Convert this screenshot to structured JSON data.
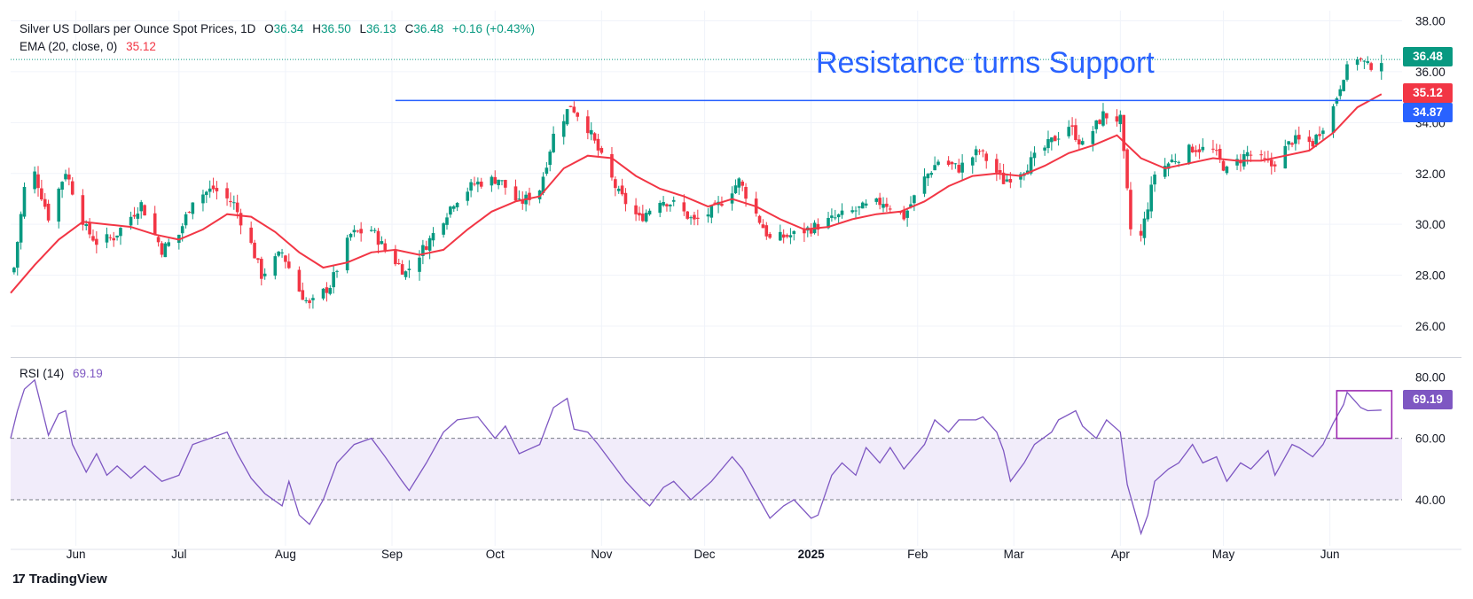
{
  "header": {
    "title": "Silver US Dollars per Ounce Spot Prices, 1D",
    "open_label": "O",
    "open": "36.34",
    "high_label": "H",
    "high": "36.50",
    "low_label": "L",
    "low": "36.13",
    "close_label": "C",
    "close": "36.48",
    "change": "+0.16 (+0.43%)"
  },
  "ema_legend": {
    "label": "EMA (20, close, 0)",
    "value": "35.12"
  },
  "rsi_legend": {
    "label": "RSI (14)",
    "value": "69.19"
  },
  "annotation": "Resistance turns Support",
  "badges": {
    "price": "36.48",
    "ema": "35.12",
    "resistance": "34.87",
    "rsi": "69.19"
  },
  "brand": "TradingView",
  "colors": {
    "up": "#089981",
    "down": "#f23645",
    "ema": "#f23645",
    "resistance": "#2962ff",
    "rsi": "#7e57c2",
    "rsi_band": "#f1ecfa",
    "grid": "#f0f3fa"
  },
  "icons": [
    "tradingview-logo-icon"
  ],
  "chart_data": [
    {
      "type": "candlestick",
      "title": "Silver US Dollars per Ounce Spot Prices, 1D",
      "x_axis_labels": [
        "Jun",
        "Jul",
        "Aug",
        "Sep",
        "Oct",
        "Nov",
        "Dec",
        "2025",
        "Feb",
        "Mar",
        "Apr",
        "May",
        "Jun"
      ],
      "y_axis_ticks": [
        26.0,
        28.0,
        30.0,
        32.0,
        34.0,
        36.0,
        38.0
      ],
      "ylim": [
        25.2,
        38.4
      ],
      "last_close": 36.48,
      "horizontal_line": {
        "label": "Resistance turns Support",
        "value": 34.87,
        "from": "2024-09-02"
      },
      "close_series": [
        {
          "x": "2024-05-14",
          "y": 28.3
        },
        {
          "x": "2024-05-17",
          "y": 31.4
        },
        {
          "x": "2024-05-20",
          "y": 32.0
        },
        {
          "x": "2024-05-24",
          "y": 30.3
        },
        {
          "x": "2024-05-29",
          "y": 32.1
        },
        {
          "x": "2024-06-04",
          "y": 29.8
        },
        {
          "x": "2024-06-07",
          "y": 29.3
        },
        {
          "x": "2024-06-12",
          "y": 29.5
        },
        {
          "x": "2024-06-20",
          "y": 30.8
        },
        {
          "x": "2024-06-26",
          "y": 29.0
        },
        {
          "x": "2024-07-01",
          "y": 29.6
        },
        {
          "x": "2024-07-05",
          "y": 31.0
        },
        {
          "x": "2024-07-11",
          "y": 31.4
        },
        {
          "x": "2024-07-17",
          "y": 30.8
        },
        {
          "x": "2024-07-22",
          "y": 29.2
        },
        {
          "x": "2024-07-25",
          "y": 28.0
        },
        {
          "x": "2024-07-31",
          "y": 28.9
        },
        {
          "x": "2024-08-05",
          "y": 27.4
        },
        {
          "x": "2024-08-08",
          "y": 26.8
        },
        {
          "x": "2024-08-14",
          "y": 27.6
        },
        {
          "x": "2024-08-20",
          "y": 29.6
        },
        {
          "x": "2024-08-26",
          "y": 29.8
        },
        {
          "x": "2024-08-30",
          "y": 29.0
        },
        {
          "x": "2024-09-05",
          "y": 28.1
        },
        {
          "x": "2024-09-12",
          "y": 29.4
        },
        {
          "x": "2024-09-19",
          "y": 30.9
        },
        {
          "x": "2024-09-25",
          "y": 31.6
        },
        {
          "x": "2024-10-02",
          "y": 31.8
        },
        {
          "x": "2024-10-08",
          "y": 30.8
        },
        {
          "x": "2024-10-14",
          "y": 31.4
        },
        {
          "x": "2024-10-18",
          "y": 33.5
        },
        {
          "x": "2024-10-23",
          "y": 34.7
        },
        {
          "x": "2024-10-28",
          "y": 33.8
        },
        {
          "x": "2024-11-01",
          "y": 32.6
        },
        {
          "x": "2024-11-06",
          "y": 31.2
        },
        {
          "x": "2024-11-12",
          "y": 30.2
        },
        {
          "x": "2024-11-18",
          "y": 31.0
        },
        {
          "x": "2024-11-22",
          "y": 30.8
        },
        {
          "x": "2024-11-28",
          "y": 30.1
        },
        {
          "x": "2024-12-04",
          "y": 30.6
        },
        {
          "x": "2024-12-11",
          "y": 31.7
        },
        {
          "x": "2024-12-16",
          "y": 30.4
        },
        {
          "x": "2024-12-20",
          "y": 29.4
        },
        {
          "x": "2024-12-27",
          "y": 29.6
        },
        {
          "x": "2025-01-02",
          "y": 29.9
        },
        {
          "x": "2025-01-09",
          "y": 30.3
        },
        {
          "x": "2025-01-15",
          "y": 30.6
        },
        {
          "x": "2025-01-22",
          "y": 30.9
        },
        {
          "x": "2025-01-28",
          "y": 30.3
        },
        {
          "x": "2025-02-03",
          "y": 31.8
        },
        {
          "x": "2025-02-07",
          "y": 32.5
        },
        {
          "x": "2025-02-13",
          "y": 32.2
        },
        {
          "x": "2025-02-19",
          "y": 32.9
        },
        {
          "x": "2025-02-26",
          "y": 31.7
        },
        {
          "x": "2025-03-04",
          "y": 32.2
        },
        {
          "x": "2025-03-10",
          "y": 33.0
        },
        {
          "x": "2025-03-17",
          "y": 33.9
        },
        {
          "x": "2025-03-21",
          "y": 33.1
        },
        {
          "x": "2025-03-27",
          "y": 34.3
        },
        {
          "x": "2025-04-01",
          "y": 34.1
        },
        {
          "x": "2025-04-04",
          "y": 29.8
        },
        {
          "x": "2025-04-07",
          "y": 29.5
        },
        {
          "x": "2025-04-11",
          "y": 32.0
        },
        {
          "x": "2025-04-16",
          "y": 32.5
        },
        {
          "x": "2025-04-22",
          "y": 33.0
        },
        {
          "x": "2025-04-28",
          "y": 32.9
        },
        {
          "x": "2025-05-02",
          "y": 32.1
        },
        {
          "x": "2025-05-08",
          "y": 32.8
        },
        {
          "x": "2025-05-15",
          "y": 32.3
        },
        {
          "x": "2025-05-21",
          "y": 33.3
        },
        {
          "x": "2025-05-27",
          "y": 33.2
        },
        {
          "x": "2025-06-02",
          "y": 34.6
        },
        {
          "x": "2025-06-05",
          "y": 35.9
        },
        {
          "x": "2025-06-09",
          "y": 36.6
        },
        {
          "x": "2025-06-12",
          "y": 36.2
        },
        {
          "x": "2025-06-16",
          "y": 36.48
        }
      ],
      "ema": {
        "name": "EMA (20, close, 0)",
        "last": 35.12,
        "series": [
          {
            "x": "2024-05-13",
            "y": 27.3
          },
          {
            "x": "2024-05-20",
            "y": 28.4
          },
          {
            "x": "2024-05-27",
            "y": 29.4
          },
          {
            "x": "2024-06-03",
            "y": 30.1
          },
          {
            "x": "2024-06-10",
            "y": 30.0
          },
          {
            "x": "2024-06-17",
            "y": 29.9
          },
          {
            "x": "2024-06-24",
            "y": 29.6
          },
          {
            "x": "2024-07-01",
            "y": 29.4
          },
          {
            "x": "2024-07-08",
            "y": 29.8
          },
          {
            "x": "2024-07-15",
            "y": 30.4
          },
          {
            "x": "2024-07-22",
            "y": 30.3
          },
          {
            "x": "2024-07-29",
            "y": 29.7
          },
          {
            "x": "2024-08-05",
            "y": 28.9
          },
          {
            "x": "2024-08-12",
            "y": 28.3
          },
          {
            "x": "2024-08-19",
            "y": 28.5
          },
          {
            "x": "2024-08-26",
            "y": 28.9
          },
          {
            "x": "2024-09-02",
            "y": 29.0
          },
          {
            "x": "2024-09-09",
            "y": 28.8
          },
          {
            "x": "2024-09-16",
            "y": 29.0
          },
          {
            "x": "2024-09-23",
            "y": 29.8
          },
          {
            "x": "2024-09-30",
            "y": 30.5
          },
          {
            "x": "2024-10-07",
            "y": 30.9
          },
          {
            "x": "2024-10-14",
            "y": 31.1
          },
          {
            "x": "2024-10-21",
            "y": 32.2
          },
          {
            "x": "2024-10-28",
            "y": 32.7
          },
          {
            "x": "2024-11-04",
            "y": 32.6
          },
          {
            "x": "2024-11-11",
            "y": 31.9
          },
          {
            "x": "2024-11-18",
            "y": 31.4
          },
          {
            "x": "2024-11-25",
            "y": 31.1
          },
          {
            "x": "2024-12-02",
            "y": 30.7
          },
          {
            "x": "2024-12-09",
            "y": 31.0
          },
          {
            "x": "2024-12-16",
            "y": 30.7
          },
          {
            "x": "2024-12-23",
            "y": 30.2
          },
          {
            "x": "2024-12-30",
            "y": 29.8
          },
          {
            "x": "2025-01-06",
            "y": 29.9
          },
          {
            "x": "2025-01-13",
            "y": 30.2
          },
          {
            "x": "2025-01-20",
            "y": 30.4
          },
          {
            "x": "2025-01-27",
            "y": 30.5
          },
          {
            "x": "2025-02-03",
            "y": 30.9
          },
          {
            "x": "2025-02-10",
            "y": 31.5
          },
          {
            "x": "2025-02-17",
            "y": 31.9
          },
          {
            "x": "2025-02-24",
            "y": 32.0
          },
          {
            "x": "2025-03-03",
            "y": 31.9
          },
          {
            "x": "2025-03-10",
            "y": 32.3
          },
          {
            "x": "2025-03-17",
            "y": 32.8
          },
          {
            "x": "2025-03-24",
            "y": 33.1
          },
          {
            "x": "2025-03-31",
            "y": 33.5
          },
          {
            "x": "2025-04-07",
            "y": 32.6
          },
          {
            "x": "2025-04-14",
            "y": 32.2
          },
          {
            "x": "2025-04-21",
            "y": 32.4
          },
          {
            "x": "2025-04-28",
            "y": 32.6
          },
          {
            "x": "2025-05-05",
            "y": 32.5
          },
          {
            "x": "2025-05-12",
            "y": 32.5
          },
          {
            "x": "2025-05-19",
            "y": 32.7
          },
          {
            "x": "2025-05-26",
            "y": 32.9
          },
          {
            "x": "2025-06-02",
            "y": 33.6
          },
          {
            "x": "2025-06-09",
            "y": 34.6
          },
          {
            "x": "2025-06-16",
            "y": 35.12
          }
        ]
      }
    },
    {
      "type": "line",
      "title": "RSI (14)",
      "x_axis_labels": [
        "Jun",
        "Jul",
        "Aug",
        "Sep",
        "Oct",
        "Nov",
        "Dec",
        "2025",
        "Feb",
        "Mar",
        "Apr",
        "May",
        "Jun"
      ],
      "y_axis_ticks": [
        40.0,
        60.0,
        80.0
      ],
      "ylim": [
        25,
        85
      ],
      "band": [
        40,
        60
      ],
      "last": 69.19,
      "series": [
        {
          "x": "2024-05-13",
          "y": 60
        },
        {
          "x": "2024-05-15",
          "y": 69
        },
        {
          "x": "2024-05-17",
          "y": 76
        },
        {
          "x": "2024-05-20",
          "y": 79
        },
        {
          "x": "2024-05-22",
          "y": 70
        },
        {
          "x": "2024-05-24",
          "y": 61
        },
        {
          "x": "2024-05-27",
          "y": 68
        },
        {
          "x": "2024-05-29",
          "y": 69
        },
        {
          "x": "2024-05-31",
          "y": 58
        },
        {
          "x": "2024-06-04",
          "y": 49
        },
        {
          "x": "2024-06-07",
          "y": 55
        },
        {
          "x": "2024-06-10",
          "y": 48
        },
        {
          "x": "2024-06-13",
          "y": 51
        },
        {
          "x": "2024-06-17",
          "y": 47
        },
        {
          "x": "2024-06-21",
          "y": 51
        },
        {
          "x": "2024-06-26",
          "y": 46
        },
        {
          "x": "2024-07-01",
          "y": 48
        },
        {
          "x": "2024-07-05",
          "y": 58
        },
        {
          "x": "2024-07-10",
          "y": 60
        },
        {
          "x": "2024-07-15",
          "y": 62
        },
        {
          "x": "2024-07-18",
          "y": 55
        },
        {
          "x": "2024-07-22",
          "y": 47
        },
        {
          "x": "2024-07-26",
          "y": 42
        },
        {
          "x": "2024-07-31",
          "y": 38
        },
        {
          "x": "2024-08-02",
          "y": 46
        },
        {
          "x": "2024-08-05",
          "y": 35
        },
        {
          "x": "2024-08-08",
          "y": 32
        },
        {
          "x": "2024-08-12",
          "y": 40
        },
        {
          "x": "2024-08-16",
          "y": 52
        },
        {
          "x": "2024-08-21",
          "y": 58
        },
        {
          "x": "2024-08-26",
          "y": 60
        },
        {
          "x": "2024-08-30",
          "y": 54
        },
        {
          "x": "2024-09-04",
          "y": 46
        },
        {
          "x": "2024-09-06",
          "y": 43
        },
        {
          "x": "2024-09-11",
          "y": 52
        },
        {
          "x": "2024-09-16",
          "y": 62
        },
        {
          "x": "2024-09-20",
          "y": 66
        },
        {
          "x": "2024-09-26",
          "y": 67
        },
        {
          "x": "2024-10-01",
          "y": 60
        },
        {
          "x": "2024-10-04",
          "y": 64
        },
        {
          "x": "2024-10-08",
          "y": 55
        },
        {
          "x": "2024-10-14",
          "y": 58
        },
        {
          "x": "2024-10-18",
          "y": 70
        },
        {
          "x": "2024-10-22",
          "y": 73
        },
        {
          "x": "2024-10-24",
          "y": 63
        },
        {
          "x": "2024-10-28",
          "y": 62
        },
        {
          "x": "2024-10-31",
          "y": 58
        },
        {
          "x": "2024-11-04",
          "y": 52
        },
        {
          "x": "2024-11-08",
          "y": 46
        },
        {
          "x": "2024-11-13",
          "y": 40
        },
        {
          "x": "2024-11-15",
          "y": 38
        },
        {
          "x": "2024-11-19",
          "y": 44
        },
        {
          "x": "2024-11-22",
          "y": 46
        },
        {
          "x": "2024-11-27",
          "y": 40
        },
        {
          "x": "2024-12-03",
          "y": 46
        },
        {
          "x": "2024-12-09",
          "y": 54
        },
        {
          "x": "2024-12-12",
          "y": 50
        },
        {
          "x": "2024-12-17",
          "y": 40
        },
        {
          "x": "2024-12-20",
          "y": 34
        },
        {
          "x": "2024-12-24",
          "y": 38
        },
        {
          "x": "2024-12-27",
          "y": 40
        },
        {
          "x": "2025-01-01",
          "y": 34
        },
        {
          "x": "2025-01-03",
          "y": 35
        },
        {
          "x": "2025-01-07",
          "y": 48
        },
        {
          "x": "2025-01-10",
          "y": 52
        },
        {
          "x": "2025-01-14",
          "y": 48
        },
        {
          "x": "2025-01-17",
          "y": 57
        },
        {
          "x": "2025-01-21",
          "y": 52
        },
        {
          "x": "2025-01-24",
          "y": 57
        },
        {
          "x": "2025-01-28",
          "y": 50
        },
        {
          "x": "2025-02-03",
          "y": 58
        },
        {
          "x": "2025-02-06",
          "y": 66
        },
        {
          "x": "2025-02-10",
          "y": 62
        },
        {
          "x": "2025-02-13",
          "y": 66
        },
        {
          "x": "2025-02-18",
          "y": 66
        },
        {
          "x": "2025-02-20",
          "y": 67
        },
        {
          "x": "2025-02-24",
          "y": 62
        },
        {
          "x": "2025-02-26",
          "y": 56
        },
        {
          "x": "2025-02-28",
          "y": 46
        },
        {
          "x": "2025-03-04",
          "y": 52
        },
        {
          "x": "2025-03-07",
          "y": 58
        },
        {
          "x": "2025-03-12",
          "y": 62
        },
        {
          "x": "2025-03-14",
          "y": 66
        },
        {
          "x": "2025-03-19",
          "y": 69
        },
        {
          "x": "2025-03-21",
          "y": 64
        },
        {
          "x": "2025-03-25",
          "y": 60
        },
        {
          "x": "2025-03-28",
          "y": 66
        },
        {
          "x": "2025-04-01",
          "y": 62
        },
        {
          "x": "2025-04-03",
          "y": 45
        },
        {
          "x": "2025-04-07",
          "y": 29
        },
        {
          "x": "2025-04-09",
          "y": 35
        },
        {
          "x": "2025-04-11",
          "y": 46
        },
        {
          "x": "2025-04-15",
          "y": 50
        },
        {
          "x": "2025-04-18",
          "y": 52
        },
        {
          "x": "2025-04-22",
          "y": 58
        },
        {
          "x": "2025-04-25",
          "y": 52
        },
        {
          "x": "2025-04-29",
          "y": 54
        },
        {
          "x": "2025-05-02",
          "y": 46
        },
        {
          "x": "2025-05-06",
          "y": 52
        },
        {
          "x": "2025-05-09",
          "y": 50
        },
        {
          "x": "2025-05-14",
          "y": 56
        },
        {
          "x": "2025-05-16",
          "y": 48
        },
        {
          "x": "2025-05-21",
          "y": 58
        },
        {
          "x": "2025-05-23",
          "y": 57
        },
        {
          "x": "2025-05-27",
          "y": 54
        },
        {
          "x": "2025-05-30",
          "y": 58
        },
        {
          "x": "2025-06-02",
          "y": 65
        },
        {
          "x": "2025-06-05",
          "y": 71
        },
        {
          "x": "2025-06-06",
          "y": 75
        },
        {
          "x": "2025-06-10",
          "y": 70
        },
        {
          "x": "2025-06-12",
          "y": 69
        },
        {
          "x": "2025-06-16",
          "y": 69.19
        }
      ],
      "highlight_box": {
        "from": "2025-06-03",
        "to": "2025-06-19",
        "y_range": [
          60,
          75.5
        ]
      }
    }
  ]
}
